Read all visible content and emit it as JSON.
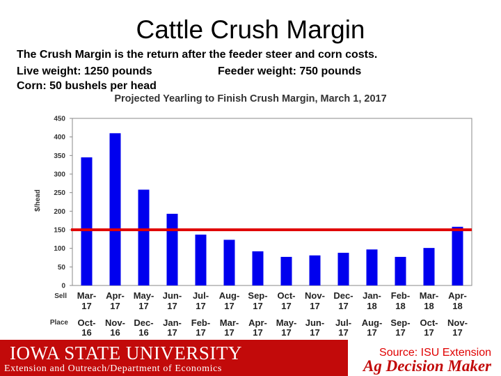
{
  "slide_title": "Cattle Crush Margin",
  "description": {
    "line1": "The Crush Margin is the return after the feeder steer and corn costs.",
    "live_weight": "Live weight:  1250 pounds",
    "feeder_weight": "Feeder weight:  750 pounds",
    "corn": "Corn:  50 bushels per head"
  },
  "footer": {
    "university": "IOWA STATE UNIVERSITY",
    "department": "Extension and Outreach/Department of Economics",
    "source": "Source: ISU Extension",
    "brand": "Ag Decision Maker"
  },
  "colors": {
    "bar": "#0000ee",
    "reference_line": "#e00000",
    "brand_red": "#c20a0a"
  },
  "chart_data": {
    "type": "bar",
    "title": "Projected Yearling to Finish Crush Margin, March 1, 2017",
    "ylabel": "$/head",
    "ylim": [
      0,
      450
    ],
    "yticks": [
      0,
      50,
      100,
      150,
      200,
      250,
      300,
      350,
      400,
      450
    ],
    "row_labels": [
      "Sell",
      "Place"
    ],
    "categories": [
      {
        "sell": [
          "Mar-",
          "17"
        ],
        "place": [
          "Oct-",
          "16"
        ]
      },
      {
        "sell": [
          "Apr-",
          "17"
        ],
        "place": [
          "Nov-",
          "16"
        ]
      },
      {
        "sell": [
          "May-",
          "17"
        ],
        "place": [
          "Dec-",
          "16"
        ]
      },
      {
        "sell": [
          "Jun-",
          "17"
        ],
        "place": [
          "Jan-",
          "17"
        ]
      },
      {
        "sell": [
          "Jul-",
          "17"
        ],
        "place": [
          "Feb-",
          "17"
        ]
      },
      {
        "sell": [
          "Aug-",
          "17"
        ],
        "place": [
          "Mar-",
          "17"
        ]
      },
      {
        "sell": [
          "Sep-",
          "17"
        ],
        "place": [
          "Apr-",
          "17"
        ]
      },
      {
        "sell": [
          "Oct-",
          "17"
        ],
        "place": [
          "May-",
          "17"
        ]
      },
      {
        "sell": [
          "Nov-",
          "17"
        ],
        "place": [
          "Jun-",
          "17"
        ]
      },
      {
        "sell": [
          "Dec-",
          "17"
        ],
        "place": [
          "Jul-",
          "17"
        ]
      },
      {
        "sell": [
          "Jan-",
          "18"
        ],
        "place": [
          "Aug-",
          "17"
        ]
      },
      {
        "sell": [
          "Feb-",
          "18"
        ],
        "place": [
          "Sep-",
          "17"
        ]
      },
      {
        "sell": [
          "Mar-",
          "18"
        ],
        "place": [
          "Oct-",
          "17"
        ]
      },
      {
        "sell": [
          "Apr-",
          "18"
        ],
        "place": [
          "Nov-",
          "17"
        ]
      }
    ],
    "values": [
      345,
      410,
      258,
      193,
      137,
      123,
      92,
      77,
      81,
      88,
      97,
      77,
      101,
      158
    ],
    "reference_line": 150,
    "grid": false
  }
}
